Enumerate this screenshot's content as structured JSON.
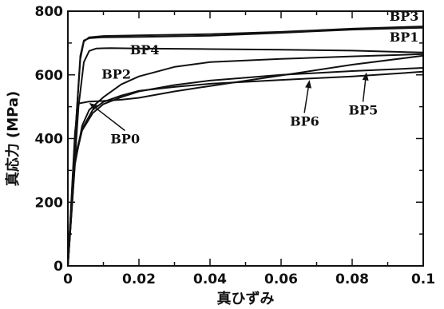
{
  "chart_data": {
    "type": "line",
    "xlabel": "真ひずみ",
    "ylabel": "真応力 (MPa)",
    "xlim": [
      0,
      0.1
    ],
    "ylim": [
      0,
      800
    ],
    "xticks": [
      {
        "value": 0,
        "label": "0"
      },
      {
        "value": 0.02,
        "label": "0.02"
      },
      {
        "value": 0.04,
        "label": "0.04"
      },
      {
        "value": 0.06,
        "label": "0.06"
      },
      {
        "value": 0.08,
        "label": "0.08"
      },
      {
        "value": 0.1,
        "label": "0.1"
      }
    ],
    "yticks": [
      {
        "value": 0,
        "label": "0"
      },
      {
        "value": 200,
        "label": "200"
      },
      {
        "value": 400,
        "label": "400"
      },
      {
        "value": 600,
        "label": "600"
      },
      {
        "value": 800,
        "label": "800"
      }
    ],
    "grid": false,
    "series": [
      {
        "name": "BP3",
        "points": [
          [
            0,
            0
          ],
          [
            0.002,
            400
          ],
          [
            0.0035,
            650
          ],
          [
            0.0045,
            705
          ],
          [
            0.006,
            718
          ],
          [
            0.01,
            722
          ],
          [
            0.02,
            724
          ],
          [
            0.04,
            728
          ],
          [
            0.06,
            735
          ],
          [
            0.08,
            745
          ],
          [
            0.1,
            752
          ]
        ]
      },
      {
        "name": "BP1",
        "points": [
          [
            0,
            0
          ],
          [
            0.002,
            400
          ],
          [
            0.0035,
            660
          ],
          [
            0.0045,
            708
          ],
          [
            0.006,
            715
          ],
          [
            0.01,
            718
          ],
          [
            0.02,
            719
          ],
          [
            0.04,
            723
          ],
          [
            0.06,
            732
          ],
          [
            0.08,
            742
          ],
          [
            0.1,
            748
          ]
        ]
      },
      {
        "name": "BP4",
        "points": [
          [
            0,
            0
          ],
          [
            0.003,
            500
          ],
          [
            0.0045,
            640
          ],
          [
            0.006,
            675
          ],
          [
            0.008,
            683
          ],
          [
            0.012,
            684
          ],
          [
            0.02,
            683
          ],
          [
            0.04,
            681
          ],
          [
            0.06,
            679
          ],
          [
            0.08,
            676
          ],
          [
            0.1,
            670
          ]
        ]
      },
      {
        "name": "BP2",
        "points": [
          [
            0,
            0
          ],
          [
            0.002,
            320
          ],
          [
            0.004,
            440
          ],
          [
            0.006,
            490
          ],
          [
            0.01,
            530
          ],
          [
            0.015,
            570
          ],
          [
            0.02,
            595
          ],
          [
            0.03,
            625
          ],
          [
            0.04,
            640
          ],
          [
            0.06,
            650
          ],
          [
            0.08,
            658
          ],
          [
            0.1,
            665
          ]
        ]
      },
      {
        "name": "BP0",
        "points": [
          [
            0,
            0
          ],
          [
            0.002,
            420
          ],
          [
            0.003,
            510
          ],
          [
            0.006,
            516
          ],
          [
            0.01,
            518
          ],
          [
            0.015,
            522
          ],
          [
            0.02,
            528
          ],
          [
            0.03,
            548
          ],
          [
            0.04,
            565
          ],
          [
            0.06,
            598
          ],
          [
            0.08,
            632
          ],
          [
            0.1,
            660
          ]
        ]
      },
      {
        "name": "BP6",
        "points": [
          [
            0,
            0
          ],
          [
            0.002,
            340
          ],
          [
            0.004,
            430
          ],
          [
            0.007,
            490
          ],
          [
            0.01,
            515
          ],
          [
            0.015,
            535
          ],
          [
            0.02,
            550
          ],
          [
            0.03,
            562
          ],
          [
            0.04,
            572
          ],
          [
            0.06,
            584
          ],
          [
            0.08,
            595
          ],
          [
            0.1,
            610
          ]
        ]
      },
      {
        "name": "BP5",
        "points": [
          [
            0,
            0
          ],
          [
            0.002,
            330
          ],
          [
            0.004,
            425
          ],
          [
            0.007,
            480
          ],
          [
            0.01,
            508
          ],
          [
            0.015,
            530
          ],
          [
            0.02,
            548
          ],
          [
            0.03,
            568
          ],
          [
            0.04,
            582
          ],
          [
            0.06,
            600
          ],
          [
            0.08,
            612
          ],
          [
            0.1,
            622
          ]
        ]
      }
    ],
    "annotations": [
      {
        "text": "BP3",
        "x": 0.0905,
        "y": 770
      },
      {
        "text": "BP1",
        "x": 0.0905,
        "y": 705
      },
      {
        "text": "BP4",
        "x": 0.0175,
        "y": 665
      },
      {
        "text": "BP2",
        "x": 0.0095,
        "y": 588
      },
      {
        "text": "BP0",
        "x": 0.012,
        "y": 385,
        "arrow_to": [
          0.006,
          512
        ]
      },
      {
        "text": "BP6",
        "x": 0.0625,
        "y": 440,
        "arrow_to": [
          0.068,
          584
        ]
      },
      {
        "text": "BP5",
        "x": 0.079,
        "y": 475,
        "arrow_to": [
          0.084,
          608
        ]
      }
    ]
  }
}
